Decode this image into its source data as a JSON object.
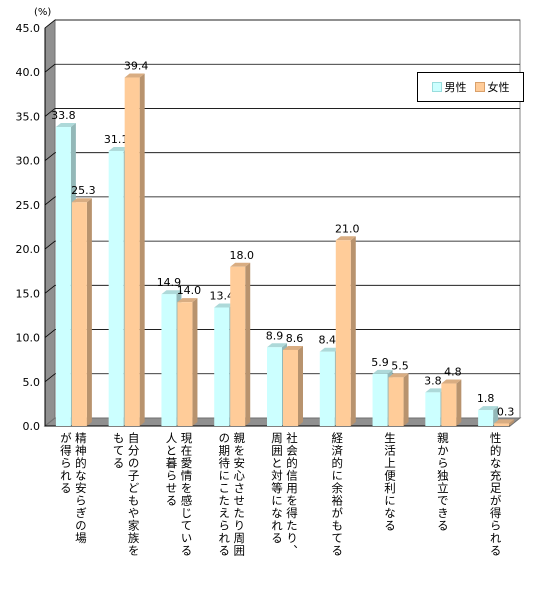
{
  "chart_data": {
    "type": "bar",
    "unit_label": "(%)",
    "ylim": [
      0,
      45
    ],
    "yticks": [
      "0.0",
      "5.0",
      "10.0",
      "15.0",
      "20.0",
      "25.0",
      "30.0",
      "35.0",
      "40.0",
      "45.0"
    ],
    "categories": [
      [
        "精神的な安らぎの場",
        "が得られる"
      ],
      [
        "自分の子どもや家族を",
        "もてる"
      ],
      [
        "現在愛情を感じている",
        "人と暮らせる"
      ],
      [
        "親を安心させたり周囲",
        "の期待にこたえられる"
      ],
      [
        "社会的信用を得たり、",
        "周囲と対等になれる"
      ],
      [
        "経済的に余裕がもてる"
      ],
      [
        "生活上便利になる"
      ],
      [
        "親から独立できる"
      ],
      [
        "性的な充足が得られる"
      ]
    ],
    "series": [
      {
        "name": "男性",
        "color": "#ccffff",
        "values": [
          33.8,
          31.1,
          14.9,
          13.4,
          8.9,
          8.4,
          5.9,
          3.8,
          1.8
        ],
        "labels": [
          "33.8",
          "31.1",
          "14.9",
          "13.4",
          "8.9",
          "8.4",
          "5.9",
          "3.8",
          "1.8"
        ]
      },
      {
        "name": "女性",
        "color": "#ffcc99",
        "values": [
          25.3,
          39.4,
          14.0,
          18.0,
          8.6,
          21.0,
          5.5,
          4.8,
          0.3
        ],
        "labels": [
          "25.3",
          "39.4",
          "14.0",
          "18.0",
          "8.6",
          "21.0",
          "5.5",
          "4.8",
          "0.3"
        ]
      }
    ],
    "grid": true,
    "legend_position": "top-right"
  }
}
